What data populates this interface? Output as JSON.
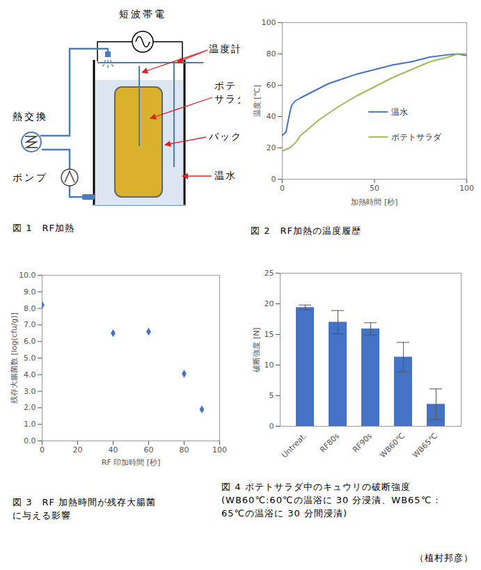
{
  "diagram": {
    "labels": {
      "rf_source": "短波帯電",
      "thermometer": "温度計",
      "potato_salad": [
        "ポテト",
        "サラダ"
      ],
      "bag": "バック",
      "water": "温水",
      "heat_exchanger": "熱交換",
      "pump": "ポンプ"
    },
    "caption": "図 1　RF加熱"
  },
  "chart_data": [
    {
      "type": "line",
      "title": "図 2　RF加熱の温度履歴",
      "x_label": "加熱時間 [秒]",
      "y_label": "温度 [℃]",
      "x": [
        0,
        2,
        4,
        5,
        7,
        10,
        15,
        20,
        25,
        30,
        40,
        50,
        60,
        70,
        80,
        90,
        95,
        100
      ],
      "series": [
        {
          "name": "温水",
          "color": "#4472c4",
          "values": [
            28,
            30,
            42,
            47,
            50,
            52,
            55,
            58,
            61,
            63,
            67,
            70,
            73,
            75,
            78,
            79.5,
            80,
            79
          ]
        },
        {
          "name": "ポテトサラダ",
          "color": "#9bbb59",
          "values": [
            18,
            19,
            20,
            21,
            23,
            28,
            33,
            38,
            42,
            46,
            53,
            59,
            65,
            70,
            75,
            78,
            80,
            80
          ]
        }
      ],
      "xlim": [
        0,
        100
      ],
      "xticks": [
        0,
        50,
        100
      ],
      "ylim": [
        0,
        100
      ],
      "yticks": [
        0,
        20,
        40,
        60,
        80,
        100
      ],
      "legend": "right",
      "grid": false
    },
    {
      "type": "scatter",
      "title": [
        "図 3　RF 加熱時間が残存大腸菌",
        "に与える影響"
      ],
      "x_label": "RF 印加時間 [秒]",
      "y_label": "残存大腸菌数 [log(cfu/g)]",
      "x": [
        0,
        40,
        60,
        80,
        90
      ],
      "values": [
        8.2,
        6.5,
        6.6,
        4.05,
        1.9
      ],
      "color": "#4472c4",
      "marker": "diamond",
      "xlim": [
        0,
        100
      ],
      "xticks": [
        0,
        20,
        40,
        60,
        80,
        100
      ],
      "ylim": [
        0,
        10
      ],
      "yticks": [
        {
          "value": 0,
          "label": "0.0"
        },
        {
          "value": 1,
          "label": "1.0"
        },
        {
          "value": 2,
          "label": "2.0"
        },
        {
          "value": 3,
          "label": "3.0"
        },
        {
          "value": 4,
          "label": "4.0"
        },
        {
          "value": 5,
          "label": "5.0"
        },
        {
          "value": 6,
          "label": "6.0"
        },
        {
          "value": 7,
          "label": "7.0"
        },
        {
          "value": 8,
          "label": "8.0"
        },
        {
          "value": 9,
          "label": "9.0"
        },
        {
          "value": 10,
          "label": "10.0"
        }
      ],
      "grid": false
    },
    {
      "type": "bar",
      "title": [
        "図 4 ポテトサラダ中のキュウリの破断強度",
        "(WB60℃:60℃の温浴に 30 分浸漬、WB65℃ :",
        "65℃の温浴に 30 分間浸漬)"
      ],
      "y_label": "破断強度 [N]",
      "categories": [
        "Untreat.",
        "RF80s",
        "RF90s",
        "WB60℃",
        "WB65℃"
      ],
      "values": [
        19.4,
        17.0,
        15.9,
        11.3,
        3.6
      ],
      "errors": [
        0.4,
        1.9,
        1.0,
        2.4,
        2.5
      ],
      "color": "#4472c4",
      "ylim": [
        0,
        25
      ],
      "yticks": [
        0,
        5,
        10,
        15,
        20,
        25
      ],
      "grid": false
    }
  ],
  "author": "（植村邦彦）"
}
